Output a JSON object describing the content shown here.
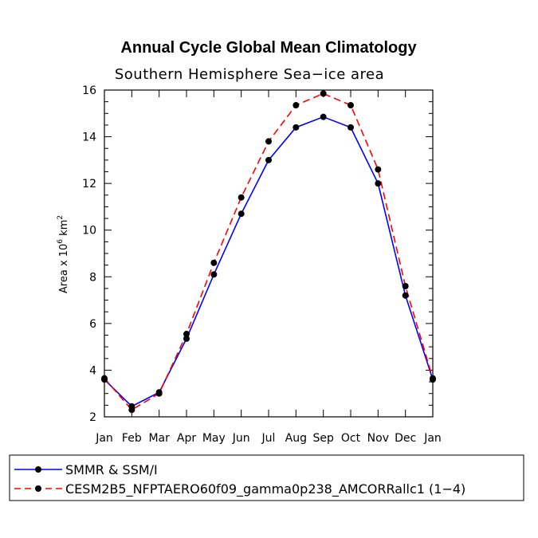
{
  "chart_data": {
    "type": "line",
    "title": "Annual Cycle Global Mean Climatology",
    "subtitle": "Southern Hemisphere Sea−ice area",
    "ylabel": {
      "main": "Area x 10",
      "exponent": "6",
      "unit": " km",
      "unit_exponent": "2"
    },
    "xlabel": "",
    "categories": [
      "Jan",
      "Feb",
      "Mar",
      "Apr",
      "May",
      "Jun",
      "Jul",
      "Aug",
      "Sep",
      "Oct",
      "Nov",
      "Dec",
      "Jan"
    ],
    "ylim": [
      2,
      16
    ],
    "yticks": [
      2,
      4,
      6,
      8,
      10,
      12,
      14,
      16
    ],
    "series": [
      {
        "name": "SMMR & SSM/I",
        "color": "#0000ff",
        "style": "solid",
        "values": [
          3.6,
          2.45,
          3.05,
          5.35,
          8.1,
          10.7,
          13.0,
          14.4,
          14.85,
          14.4,
          12.0,
          7.2,
          3.6
        ]
      },
      {
        "name": "CESM2B5_NFPTAERO60f09_gamma0p238_AMCORRallc1 (1−4)",
        "color": "#ff0000",
        "style": "dashed",
        "values": [
          3.65,
          2.3,
          3.0,
          5.55,
          8.6,
          11.4,
          13.8,
          15.35,
          15.85,
          15.35,
          12.6,
          7.6,
          3.65
        ]
      }
    ],
    "legend_position": "bottom"
  }
}
